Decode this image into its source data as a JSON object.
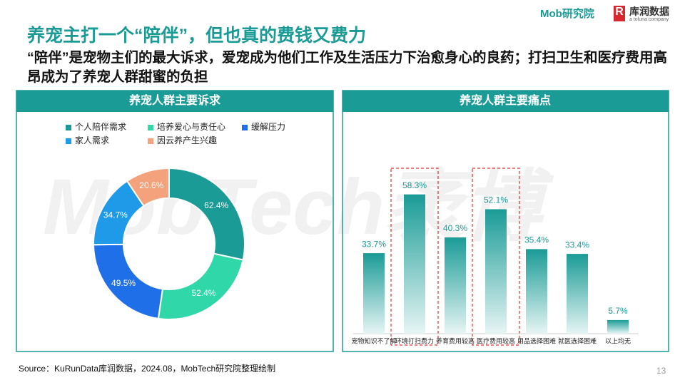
{
  "header": {
    "title": "养宠主打一个“陪伴”，但也真的费钱又费力",
    "subtitle": "“陪伴”是宠物主们的最大诉求，爱宠成为他们工作及生活压力下治愈身心的良药；打扫卫生和医疗费用高昂成为了养宠人群甜蜜的负担",
    "logo_mob": "Mob研究院",
    "logo_kurun": "库润数据",
    "logo_kurun_sub": "a toluna company"
  },
  "watermark": "MobTech袤博",
  "chart_data": [
    {
      "type": "donut",
      "title": "养宠人群主要诉求",
      "categories": [
        "个人陪伴需求",
        "培养爱心与责任心",
        "缓解压力",
        "家人需求",
        "因云养产生兴趣"
      ],
      "values": [
        62.4,
        52.4,
        49.5,
        34.7,
        20.6
      ],
      "value_labels": [
        "62.4%",
        "52.4%",
        "49.5%",
        "34.7%",
        "20.6%"
      ],
      "colors": [
        "#1a9b96",
        "#2fd7a9",
        "#1f6fe8",
        "#1f9ae8",
        "#f4a27c"
      ]
    },
    {
      "type": "bar",
      "title": "养宠人群主要痛点",
      "categories": [
        "宠物知识不了解",
        "环境打扫费力",
        "养育费用较高",
        "医疗费用较高",
        "用品选择困难",
        "就医选择困难",
        "以上均无"
      ],
      "values": [
        33.7,
        58.3,
        40.3,
        52.1,
        35.4,
        33.4,
        5.7
      ],
      "value_labels": [
        "33.7%",
        "58.3%",
        "40.3%",
        "52.1%",
        "35.4%",
        "33.4%",
        "5.7%"
      ],
      "color": "#1a9b96",
      "highlight": [
        1,
        3
      ]
    }
  ],
  "source": "Source：KuRunData库润数据，2024.08，MobTech研究院整理绘制",
  "page_number": "13"
}
